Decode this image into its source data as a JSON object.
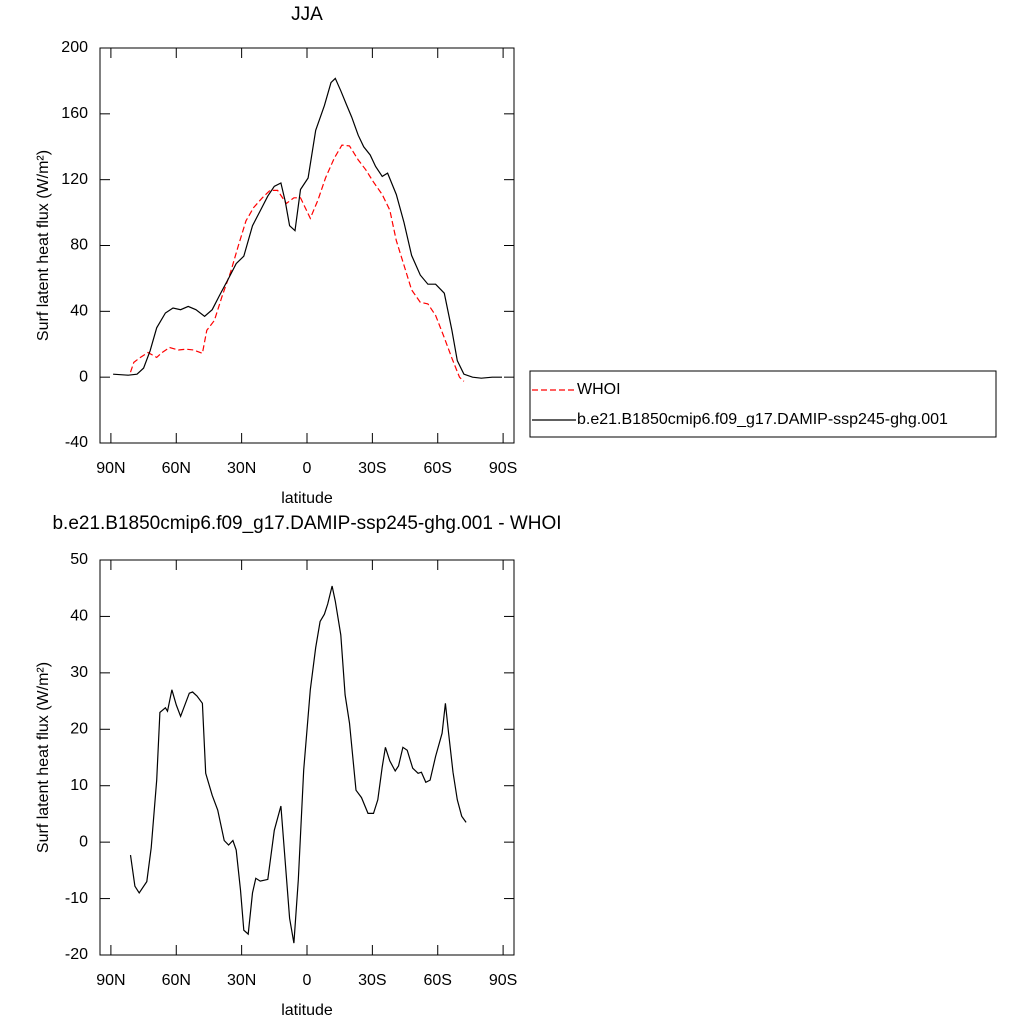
{
  "chart_data": [
    {
      "type": "line",
      "title": "JJA",
      "xlabel": "latitude",
      "ylabel": "Surf latent heat flux (W/m²)",
      "xlim": [
        95,
        -95
      ],
      "ylim": [
        -40,
        200
      ],
      "xticks": [
        {
          "value": 90,
          "label": "90N"
        },
        {
          "value": 60,
          "label": "60N"
        },
        {
          "value": 30,
          "label": "30N"
        },
        0,
        {
          "value": -30,
          "label": "30S"
        },
        {
          "value": -60,
          "label": "60S"
        },
        {
          "value": -90,
          "label": "90S"
        }
      ],
      "yticks": [
        -40,
        0,
        40,
        80,
        120,
        160,
        200
      ],
      "legend": "outside-right",
      "series": [
        {
          "name": "WHOI",
          "color": "#ff0000",
          "style": "dashed",
          "x": [
            81,
            79.5,
            77,
            73,
            69,
            66.5,
            63,
            59,
            55.5,
            52,
            48,
            46,
            42.5,
            39,
            35,
            31.5,
            28,
            24.5,
            20.5,
            17,
            13.5,
            9.5,
            6,
            3,
            -1.5,
            -5,
            -8.5,
            -12.5,
            -16,
            -19.5,
            -23.5,
            -27,
            -30.5,
            -34.5,
            -38,
            -41,
            -44.5,
            -48,
            -52,
            -55.5,
            -59,
            -63,
            -66.5,
            -70,
            -72
          ],
          "values": [
            3,
            9,
            11.5,
            15,
            12,
            15,
            18,
            16.5,
            17,
            16.5,
            14.5,
            28.5,
            34.5,
            49,
            64,
            80,
            95,
            103,
            109,
            113.5,
            113.5,
            105.5,
            109,
            109,
            96.5,
            107.5,
            121,
            133,
            141,
            140.5,
            132,
            126,
            118.5,
            111,
            101.5,
            83,
            68,
            53,
            45.5,
            44.5,
            37.5,
            24,
            11.5,
            0,
            -2.5
          ]
        },
        {
          "name": "b.e21.B1850cmip6.f09_g17.DAMIP-ssp245-ghg.001",
          "color": "#000000",
          "style": "solid",
          "x": [
            89,
            82,
            78,
            75,
            72,
            69,
            65,
            61.5,
            58,
            54.5,
            51,
            47,
            43.5,
            40,
            36,
            32.5,
            29,
            25,
            21.5,
            18,
            15,
            12,
            10,
            8,
            5.5,
            3,
            -0.5,
            -4,
            -8,
            -11,
            -13,
            -15.5,
            -18,
            -20.5,
            -23.5,
            -26,
            -29,
            -31.5,
            -34.5,
            -37,
            -41,
            -44.5,
            -48,
            -52,
            -55.5,
            -59,
            -63,
            -66.5,
            -69,
            -72,
            -76,
            -80,
            -85,
            -89.5
          ],
          "values": [
            1.8,
            1.2,
            1.8,
            5.5,
            16,
            30,
            39,
            42,
            41,
            43,
            41,
            37,
            41,
            50,
            60,
            69,
            73.5,
            92,
            101,
            110,
            116,
            118,
            107,
            92,
            89,
            114,
            121,
            150,
            165,
            179,
            181.5,
            174,
            166,
            158,
            147,
            140,
            135,
            128,
            122,
            124,
            111,
            94,
            74,
            62,
            56.5,
            56.5,
            51,
            28.5,
            10,
            1.8,
            0,
            -0.6,
            0,
            0
          ]
        }
      ]
    },
    {
      "type": "line",
      "title": "b.e21.B1850cmip6.f09_g17.DAMIP-ssp245-ghg.001 - WHOI",
      "xlabel": "latitude",
      "ylabel": "Surf latent heat flux (W/m²)",
      "xlim": [
        95,
        -95
      ],
      "ylim": [
        -20,
        50
      ],
      "xticks": [
        {
          "value": 90,
          "label": "90N"
        },
        {
          "value": 60,
          "label": "60N"
        },
        {
          "value": 30,
          "label": "30N"
        },
        0,
        {
          "value": -30,
          "label": "30S"
        },
        {
          "value": -60,
          "label": "60S"
        },
        {
          "value": -90,
          "label": "90S"
        }
      ],
      "yticks": [
        -20,
        -10,
        0,
        10,
        20,
        30,
        40,
        50
      ],
      "series": [
        {
          "color": "#000000",
          "style": "solid",
          "x": [
            81,
            79,
            77,
            73.5,
            71.5,
            69,
            67.5,
            65,
            64,
            62,
            60,
            58,
            54,
            52.5,
            50.5,
            48,
            46.5,
            43.5,
            41,
            38,
            36,
            34,
            32.5,
            30.5,
            29,
            27,
            25,
            23.5,
            21.5,
            18,
            15,
            12,
            8,
            6,
            4,
            1.5,
            -1.5,
            -4,
            -6,
            -8,
            -9.5,
            -11.5,
            -13,
            -15.5,
            -17.5,
            -19.5,
            -22.5,
            -25,
            -28,
            -30.5,
            -32.5,
            -34.5,
            -36,
            -38,
            -40.5,
            -42,
            -44,
            -46,
            -48.5,
            -51,
            -52.5,
            -54.5,
            -56.5,
            -59,
            -62,
            -63.5,
            -65,
            -67,
            -69,
            -71,
            -73
          ],
          "values": [
            -2.3,
            -7.8,
            -9,
            -7,
            -1,
            11,
            23,
            23.8,
            23.2,
            27,
            24.3,
            22.3,
            26.4,
            26.6,
            25.9,
            24.6,
            12.2,
            8.3,
            5.7,
            0.3,
            -0.5,
            0.3,
            -1.4,
            -8.5,
            -15.6,
            -16.3,
            -9,
            -6.4,
            -6.9,
            -6.6,
            2.1,
            6.4,
            -13.5,
            -17.9,
            -6.7,
            12.8,
            27,
            34.5,
            39.1,
            40.4,
            42.2,
            45.4,
            42.7,
            36.7,
            26.1,
            21.1,
            9.2,
            7.9,
            5.1,
            5.1,
            7.5,
            13.3,
            16.8,
            14.4,
            12.6,
            13.5,
            16.8,
            16.3,
            13.1,
            12.2,
            12.4,
            10.6,
            11,
            15.2,
            19.3,
            24.6,
            19.3,
            12.4,
            7.5,
            4.6,
            3.5
          ]
        }
      ]
    }
  ]
}
